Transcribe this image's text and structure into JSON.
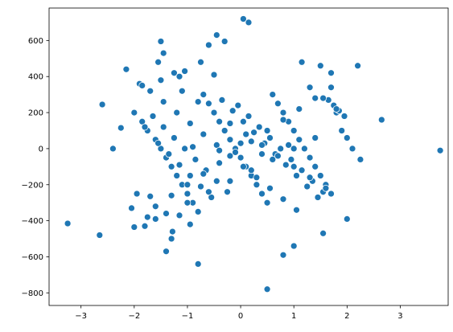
{
  "chart_data": {
    "type": "scatter",
    "title": "",
    "xlabel": "",
    "ylabel": "",
    "xlim": [
      -3.6,
      3.9
    ],
    "ylim": [
      -870,
      780
    ],
    "xticks": [
      -3,
      -2,
      -1,
      0,
      1,
      2,
      3
    ],
    "yticks": [
      -800,
      -600,
      -400,
      -200,
      0,
      200,
      400,
      600
    ],
    "grid": false,
    "legend": "none",
    "color": "#1f77b4",
    "x": [
      -3.25,
      -2.65,
      -2.6,
      -2.4,
      -2.25,
      -2.15,
      -2.05,
      -2.0,
      -1.9,
      -1.85,
      -1.8,
      -1.75,
      -1.7,
      -1.6,
      -1.55,
      -1.5,
      -1.45,
      -1.4,
      -1.3,
      -1.28,
      -1.25,
      -1.15,
      -1.15,
      -1.05,
      -0.95,
      -0.8,
      -0.75,
      -0.6,
      -0.5,
      -0.45,
      -0.3,
      0.05,
      0.15,
      0.5,
      0.8,
      1.0,
      1.15,
      1.5,
      1.55,
      1.7,
      2.0,
      2.2,
      2.25,
      2.65,
      3.75,
      -2.0,
      -1.85,
      -1.75,
      -1.6,
      -1.5,
      -1.4,
      -1.3,
      -1.2,
      -1.1,
      -1.0,
      -0.9,
      -0.8,
      -0.7,
      -0.6,
      -0.5,
      -0.4,
      -0.3,
      -0.2,
      -0.1,
      0.0,
      0.1,
      0.2,
      0.3,
      0.4,
      0.5,
      0.6,
      0.7,
      0.8,
      0.9,
      1.0,
      1.1,
      1.2,
      1.3,
      1.4,
      1.5,
      1.6,
      1.7,
      1.8,
      1.9,
      2.1,
      -1.95,
      -1.65,
      -1.45,
      -1.25,
      -1.05,
      -0.85,
      -0.65,
      -0.45,
      -0.25,
      -0.05,
      0.15,
      0.35,
      0.55,
      0.75,
      0.95,
      1.15,
      1.35,
      1.55,
      1.75,
      1.95,
      -1.8,
      -1.55,
      -1.35,
      -1.15,
      -0.95,
      -0.75,
      -0.55,
      -0.35,
      -0.15,
      0.05,
      0.25,
      0.45,
      0.65,
      0.85,
      1.05,
      1.25,
      1.45,
      1.65,
      1.85,
      -1.7,
      -1.45,
      -1.2,
      -0.95,
      -0.7,
      -0.45,
      -0.2,
      0.05,
      0.3,
      0.55,
      0.8,
      1.05,
      1.3,
      1.55,
      1.8,
      -1.6,
      -1.3,
      -1.0,
      -0.7,
      -0.4,
      -0.1,
      0.2,
      0.5,
      0.8,
      1.1,
      1.4,
      1.7,
      2.0,
      -1.5,
      -1.1,
      -0.8,
      -0.5,
      -0.2,
      0.1,
      0.4,
      0.7,
      1.0,
      1.3,
      1.6,
      -1.4,
      -1.0,
      -0.6,
      -0.2,
      0.2,
      0.6,
      1.0,
      1.4,
      -0.9,
      -0.4,
      0.0,
      0.4,
      0.9
    ],
    "y": [
      -415,
      -480,
      245,
      0,
      115,
      440,
      -330,
      -435,
      360,
      350,
      -430,
      -380,
      -265,
      -390,
      480,
      595,
      530,
      -570,
      -500,
      -460,
      420,
      400,
      -370,
      430,
      -420,
      -640,
      480,
      575,
      410,
      630,
      595,
      720,
      700,
      -780,
      -590,
      -540,
      480,
      460,
      -470,
      420,
      -390,
      460,
      -60,
      160,
      -10,
      200,
      150,
      100,
      50,
      0,
      -50,
      -100,
      -150,
      -200,
      -250,
      -300,
      -350,
      300,
      250,
      200,
      150,
      100,
      50,
      0,
      -50,
      -100,
      -150,
      -200,
      -250,
      -300,
      300,
      250,
      200,
      150,
      100,
      50,
      0,
      -50,
      -100,
      -150,
      -200,
      -250,
      200,
      100,
      0,
      -250,
      180,
      120,
      60,
      0,
      -60,
      -120,
      -180,
      -240,
      240,
      180,
      120,
      60,
      0,
      -60,
      -120,
      -180,
      -240,
      240,
      180,
      120,
      30,
      -30,
      -90,
      -150,
      -210,
      -270,
      270,
      210,
      150,
      90,
      30,
      -30,
      -90,
      -150,
      -210,
      -270,
      270,
      210,
      320,
      260,
      200,
      140,
      80,
      20,
      -40,
      -100,
      -160,
      -220,
      -280,
      -340,
      340,
      280,
      220,
      -320,
      -260,
      -200,
      -140,
      -80,
      -20,
      40,
      100,
      160,
      220,
      280,
      340,
      60,
      380,
      320,
      260,
      200,
      140,
      80,
      20,
      -40,
      -100,
      -160,
      -220,
      -360,
      -300,
      -240,
      -180,
      -120,
      -60,
      0,
      60,
      10,
      -10,
      30,
      -30,
      20
    ]
  }
}
